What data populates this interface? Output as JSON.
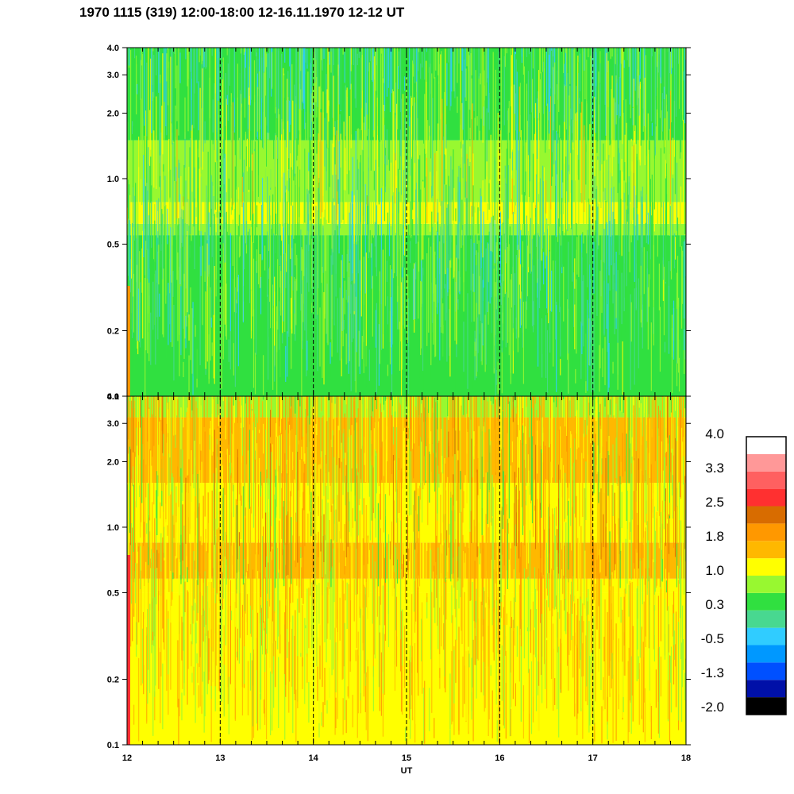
{
  "title": "1970 1115 (319) 12:00-18:00 12-16.11.1970  12-12 UT",
  "colors": {
    "background": "#ffffff",
    "axis": "#000000",
    "hour_marker": "#000000"
  },
  "chart_data": [
    {
      "type": "heatmap",
      "panel": "top",
      "x_range": [
        12,
        18
      ],
      "y_scale": "log",
      "y_range": [
        0.1,
        4.0
      ],
      "y_ticks": [
        0.1,
        0.2,
        0.5,
        1.0,
        2.0,
        3.0,
        4.0
      ],
      "y_tick_labels": [
        "0.1",
        "0.2",
        "0.5",
        "1.0",
        "2.0",
        "3.0",
        "4.0"
      ],
      "x_ticks": [
        12,
        13,
        14,
        15,
        16,
        17,
        18
      ],
      "dashed_hour_lines": [
        13,
        14,
        15,
        16,
        17
      ],
      "bands": [
        {
          "from": 0.1,
          "to": 0.55,
          "level": 0.3
        },
        {
          "from": 0.55,
          "to": 0.62,
          "level": 0.6
        },
        {
          "from": 0.62,
          "to": 0.78,
          "level": 1.0
        },
        {
          "from": 0.78,
          "to": 1.5,
          "level": 0.6
        },
        {
          "from": 1.5,
          "to": 4.0,
          "level": 0.1
        }
      ]
    },
    {
      "type": "heatmap",
      "panel": "bottom",
      "x_range": [
        12,
        18
      ],
      "y_scale": "log",
      "y_range": [
        0.1,
        4.0
      ],
      "y_ticks": [
        0.1,
        0.2,
        0.5,
        1.0,
        2.0,
        3.0,
        4.0
      ],
      "y_tick_labels": [
        "0.1",
        "0.2",
        "0.5",
        "1.0",
        "2.0",
        "3.0",
        "4.0"
      ],
      "x_ticks": [
        12,
        13,
        14,
        15,
        16,
        17,
        18
      ],
      "x_tick_labels": [
        "12",
        "13",
        "14",
        "15",
        "16",
        "17",
        "18"
      ],
      "xlabel": "UT",
      "dashed_hour_lines": [
        13,
        14,
        15,
        16,
        17
      ],
      "bands": [
        {
          "from": 0.1,
          "to": 0.5,
          "level": 1.4
        },
        {
          "from": 0.5,
          "to": 0.58,
          "level": 1.0
        },
        {
          "from": 0.58,
          "to": 0.85,
          "level": 1.9
        },
        {
          "from": 0.85,
          "to": 1.6,
          "level": 1.2
        },
        {
          "from": 1.6,
          "to": 3.2,
          "level": 1.6
        },
        {
          "from": 3.2,
          "to": 4.0,
          "level": 0.9
        }
      ]
    }
  ],
  "colorbar": {
    "labels": [
      "4.0",
      "3.3",
      "2.5",
      "1.8",
      "1.0",
      "0.3",
      "-0.5",
      "-1.3",
      "-2.0"
    ],
    "levels": [
      {
        "color": "#000000"
      },
      {
        "color": "#0010a8"
      },
      {
        "color": "#0050ff"
      },
      {
        "color": "#0098ff"
      },
      {
        "color": "#30ccff"
      },
      {
        "color": "#48d890"
      },
      {
        "color": "#30e040"
      },
      {
        "color": "#98f830"
      },
      {
        "color": "#ffff00"
      },
      {
        "color": "#ffb800"
      },
      {
        "color": "#ff9800"
      },
      {
        "color": "#d86c00"
      },
      {
        "color": "#ff3030"
      },
      {
        "color": "#ff6060"
      },
      {
        "color": "#ff9898"
      },
      {
        "color": "#ffffff"
      }
    ]
  }
}
